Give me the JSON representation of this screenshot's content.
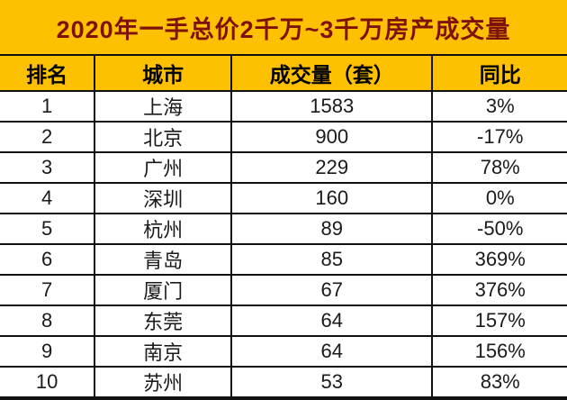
{
  "title": "2020年一手总价2千万~3千万房产成交量",
  "colors": {
    "band_orange": "#FDC101",
    "title_text": "#7E120B",
    "border": "#111111",
    "row_background": "#FFFFFF",
    "cell_text": "#1A1A1A"
  },
  "chart_data": {
    "type": "table",
    "title": "2020年一手总价2千万~3千万房产成交量",
    "columns": [
      "排名",
      "城市",
      "成交量（套）",
      "同比"
    ],
    "rows": [
      [
        "1",
        "上海",
        "1583",
        "3%"
      ],
      [
        "2",
        "北京",
        "900",
        "-17%"
      ],
      [
        "3",
        "广州",
        "229",
        "78%"
      ],
      [
        "4",
        "深圳",
        "160",
        "0%"
      ],
      [
        "5",
        "杭州",
        "89",
        "-50%"
      ],
      [
        "6",
        "青岛",
        "85",
        "369%"
      ],
      [
        "7",
        "厦门",
        "67",
        "376%"
      ],
      [
        "8",
        "东莞",
        "64",
        "157%"
      ],
      [
        "9",
        "南京",
        "64",
        "156%"
      ],
      [
        "10",
        "苏州",
        "53",
        "83%"
      ]
    ]
  }
}
